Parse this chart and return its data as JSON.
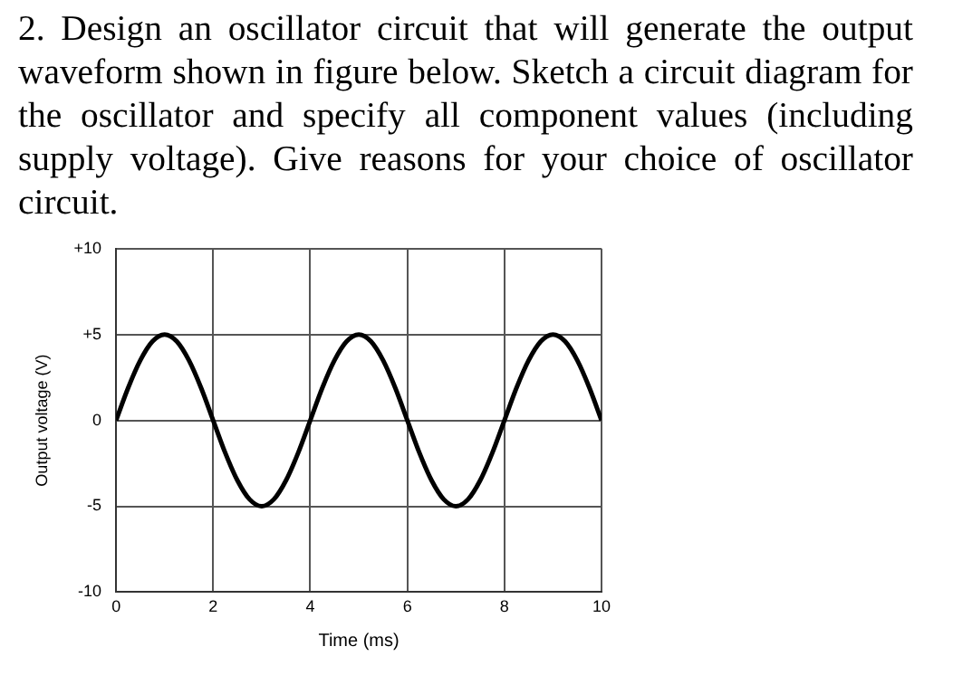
{
  "chart_data": {
    "type": "line",
    "title": "2. Design an oscillator circuit that will generate the output waveform shown in figure below. Sketch a circuit diagram for the oscillator and specify all component values (including supply voltage). Give reasons for your choice of oscillator circuit.",
    "xlabel": "Time (ms)",
    "ylabel": "Output voltage (V)",
    "x": [
      0,
      0.25,
      0.5,
      0.75,
      1,
      1.25,
      1.5,
      1.75,
      2,
      2.25,
      2.5,
      2.75,
      3,
      3.25,
      3.5,
      3.75,
      4,
      4.25,
      4.5,
      4.75,
      5,
      5.25,
      5.5,
      5.75,
      6,
      6.25,
      6.5,
      6.75,
      7,
      7.25,
      7.5,
      7.75,
      8,
      8.25,
      8.5,
      8.75,
      9,
      9.25,
      9.5,
      9.75,
      10
    ],
    "series": [
      {
        "color": "#000000",
        "values": [
          0,
          1.9,
          3.5,
          4.6,
          5,
          4.6,
          3.5,
          1.9,
          0,
          -1.9,
          -3.5,
          -4.6,
          -5,
          -4.6,
          -3.5,
          -1.9,
          0,
          1.9,
          3.5,
          4.6,
          5,
          4.6,
          3.5,
          1.9,
          0,
          -1.9,
          -3.5,
          -4.6,
          -5,
          -4.6,
          -3.5,
          -1.9,
          0,
          1.9,
          3.5,
          4.6,
          5,
          4.6,
          3.5,
          1.9,
          0
        ]
      }
    ],
    "xlim": [
      0,
      10
    ],
    "xticks": [
      0,
      2,
      4,
      6,
      8,
      10
    ],
    "ylim": [
      -10,
      10
    ],
    "yticks": [
      -10,
      -5,
      0,
      {
        "value": 5,
        "label": "+5"
      },
      {
        "value": 10,
        "label": "+10"
      }
    ],
    "grid": true,
    "legend": false,
    "marker": "none",
    "line_style": "solid"
  }
}
